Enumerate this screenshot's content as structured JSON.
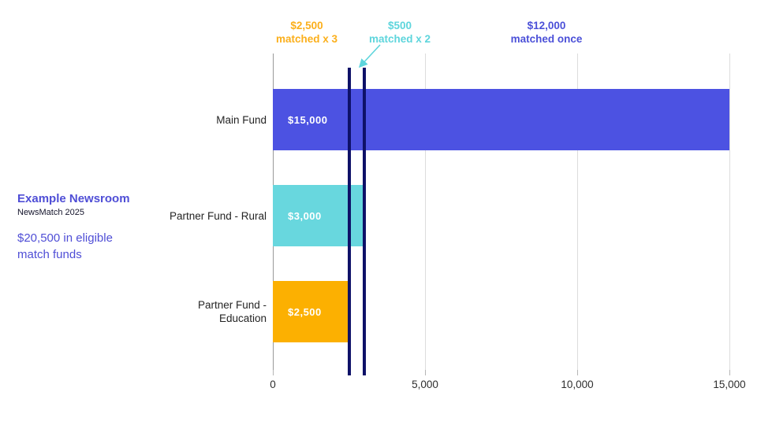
{
  "sidebar": {
    "org_name": "Example Newsroom",
    "program": "NewsMatch 2025",
    "eligible_funds": "$20,500 in eligible match funds",
    "text_color": "#4f4ed6"
  },
  "annotations": [
    {
      "line1": "$2,500",
      "line2": "matched x 3",
      "color": "#fbaf1b"
    },
    {
      "line1": "$500",
      "line2": "matched x 2",
      "color": "#5ed5dc"
    },
    {
      "line1": "$12,000",
      "line2": "matched once",
      "color": "#4b50d8"
    }
  ],
  "arrow": {
    "name": "callout-arrow",
    "color": "#5ed5dc"
  },
  "chart_data": {
    "type": "bar",
    "orientation": "horizontal",
    "title": "",
    "categories": [
      "Main Fund",
      "Partner Fund - Rural",
      "Partner Fund - Education"
    ],
    "values": [
      15000,
      3000,
      2500
    ],
    "bar_labels": [
      "$15,000",
      "$3,000",
      "$2,500"
    ],
    "bar_colors": [
      "#4c52e2",
      "#68d7de",
      "#fcb001"
    ],
    "x_ticks": [
      0,
      5000,
      10000,
      15000
    ],
    "x_tick_labels": [
      "0",
      "5,000",
      "10,000",
      "15,000"
    ],
    "xlim": [
      0,
      15000
    ],
    "grid": "vertical",
    "axis_color": "#999999",
    "gridline_color": "#dcdcdc",
    "reference_lines": [
      {
        "x": 2500,
        "color": "#0e1168"
      },
      {
        "x": 3000,
        "color": "#0e1168"
      }
    ]
  }
}
